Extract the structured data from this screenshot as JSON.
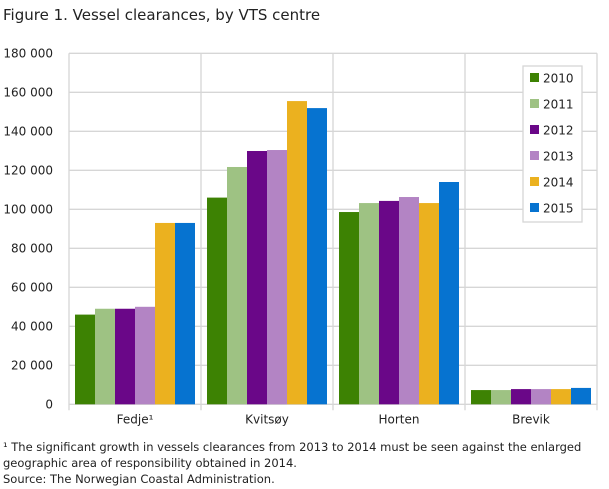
{
  "chart_data": {
    "type": "bar",
    "title": "Figure 1. Vessel clearances, by VTS centre",
    "categories": [
      "Fedje¹",
      "Kvitsøy",
      "Horten",
      "Brevik"
    ],
    "series": [
      {
        "name": "2010",
        "color": "#3d8203",
        "values": [
          46000,
          106000,
          98600,
          7300
        ]
      },
      {
        "name": "2011",
        "color": "#9ec283",
        "values": [
          49000,
          121700,
          103200,
          7300
        ]
      },
      {
        "name": "2012",
        "color": "#6a0788",
        "values": [
          49000,
          129900,
          104300,
          7800
        ]
      },
      {
        "name": "2013",
        "color": "#b384c4",
        "values": [
          50000,
          130400,
          106300,
          7800
        ]
      },
      {
        "name": "2014",
        "color": "#ebb11f",
        "values": [
          93000,
          155500,
          103200,
          7800
        ]
      },
      {
        "name": "2015",
        "color": "#0673d0",
        "values": [
          93000,
          151900,
          114000,
          8400
        ]
      }
    ],
    "ylim": [
      0,
      180000
    ],
    "yticks": [
      "0",
      "20 000",
      "40 000",
      "60 000",
      "80 000",
      "100 000",
      "120 000",
      "140 000",
      "160 000",
      "180 000"
    ],
    "grid": true,
    "legend": "top-right"
  },
  "notes": {
    "footnote_line1": "¹ The significant growth in vessels clearances from 2013 to 2014 must be seen against the enlarged",
    "footnote_line2": "geographic area of responsibility obtained in 2014.",
    "source": "Source: The Norwegian Coastal Administration."
  }
}
